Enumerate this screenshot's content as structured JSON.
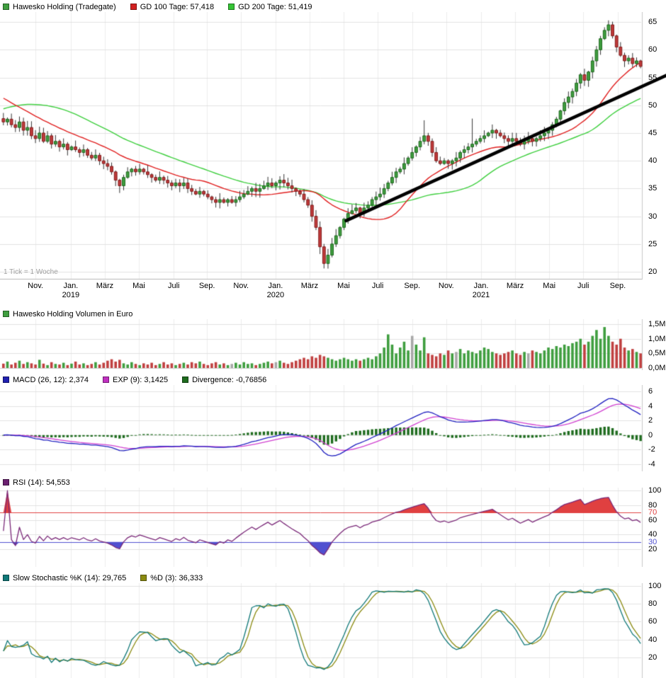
{
  "panels": {
    "price": {
      "legend": [
        {
          "label": "Hawesko Holding (Tradegate)",
          "color": "#3f9e3f"
        },
        {
          "label": "GD 100 Tage: 57,418",
          "color": "#d22020"
        },
        {
          "label": "GD 200 Tage: 51,419",
          "color": "#35c435"
        }
      ],
      "tick_note": "1 Tick = 1 Woche",
      "y_ticks": [
        {
          "v": 65,
          "label": "65"
        },
        {
          "v": 60,
          "label": "60"
        },
        {
          "v": 55,
          "label": "55"
        },
        {
          "v": 50,
          "label": "50"
        },
        {
          "v": 45,
          "label": "45"
        },
        {
          "v": 40,
          "label": "40"
        },
        {
          "v": 35,
          "label": "35"
        },
        {
          "v": 30,
          "label": "30"
        },
        {
          "v": 25,
          "label": "25"
        },
        {
          "v": 20,
          "label": "20"
        }
      ],
      "x_ticks": [
        {
          "label": "Nov.",
          "week": 8.5
        },
        {
          "label": "Jan.",
          "week": 17.3,
          "year": "2019"
        },
        {
          "label": "März",
          "week": 25.8
        },
        {
          "label": "Mai",
          "week": 34.3
        },
        {
          "label": "Juli",
          "week": 43.0
        },
        {
          "label": "Sep.",
          "week": 51.3
        },
        {
          "label": "Nov.",
          "week": 59.8
        },
        {
          "label": "Jan.",
          "week": 68.4,
          "year": "2020"
        },
        {
          "label": "März",
          "week": 76.9
        },
        {
          "label": "Mai",
          "week": 85.4
        },
        {
          "label": "Juli",
          "week": 93.9
        },
        {
          "label": "Sep.",
          "week": 102.5
        },
        {
          "label": "Nov.",
          "week": 111.0
        },
        {
          "label": "Jan.",
          "week": 119.7,
          "year": "2021"
        },
        {
          "label": "März",
          "week": 128.2
        },
        {
          "label": "Mai",
          "week": 136.7
        },
        {
          "label": "Juli",
          "week": 145.2
        },
        {
          "label": "Sep.",
          "week": 153.8
        }
      ]
    },
    "volume": {
      "legend": [
        {
          "label": "Hawesko Holding Volumen in Euro",
          "color": "#3f9e3f"
        }
      ],
      "y_ticks": [
        {
          "v": 1.5,
          "label": "1,5M"
        },
        {
          "v": 1.0,
          "label": "1,0M"
        },
        {
          "v": 0.5,
          "label": "0,5M"
        },
        {
          "v": 0.0,
          "label": "0,0M"
        }
      ]
    },
    "macd": {
      "legend": [
        {
          "label": "MACD (26, 12): 2,374",
          "color": "#2020b0"
        },
        {
          "label": "EXP (9): 3,1425",
          "color": "#c030c0"
        },
        {
          "label": "Divergence: -0,76856",
          "color": "#1e6b1e"
        }
      ],
      "y_ticks": [
        {
          "v": 6,
          "label": "6"
        },
        {
          "v": 4,
          "label": "4"
        },
        {
          "v": 2,
          "label": "2"
        },
        {
          "v": 0,
          "label": "0"
        },
        {
          "v": -2,
          "label": "-2"
        },
        {
          "v": -4,
          "label": "-4"
        }
      ]
    },
    "rsi": {
      "legend": [
        {
          "label": "RSI (14): 54,553",
          "color": "#6b2070"
        }
      ],
      "y_ticks": [
        {
          "v": 100,
          "label": "100"
        },
        {
          "v": 80,
          "label": "80"
        },
        {
          "v": 70,
          "label": "70",
          "color": "#e04040"
        },
        {
          "v": 60,
          "label": "60"
        },
        {
          "v": 40,
          "label": "40"
        },
        {
          "v": 30,
          "label": "30",
          "color": "#5050d0"
        },
        {
          "v": 20,
          "label": "20"
        }
      ]
    },
    "stoch": {
      "legend": [
        {
          "label": "Slow Stochastic %K (14): 29,765",
          "color": "#107878"
        },
        {
          "label": "%D (3): 36,333",
          "color": "#8a8a10"
        }
      ],
      "y_ticks": [
        {
          "v": 100,
          "label": "100"
        },
        {
          "v": 80,
          "label": "80"
        },
        {
          "v": 60,
          "label": "60"
        },
        {
          "v": 40,
          "label": "40"
        },
        {
          "v": 20,
          "label": "20"
        }
      ]
    }
  },
  "colors": {
    "candle_up": "#3f9e3f",
    "candle_up_border": "#1c661c",
    "candle_down": "#c03a3a",
    "candle_down_border": "#801c1c",
    "wick": "#333333",
    "gd100": "#e02020",
    "gd200": "#3fcf3f",
    "trend": "#000000",
    "volume_up": "#3f9e3f",
    "volume_down": "#c04040",
    "volume_neutral": "#a8a8a8",
    "macd_line": "#2020c0",
    "macd_signal": "#d040d0",
    "macd_hist": "#1e6b1e",
    "rsi_line": "#7a2878",
    "rsi_overbought": "#e04040",
    "rsi_oversold": "#5050d0",
    "stoch_k": "#107878",
    "stoch_d": "#8a8a10"
  },
  "chart_data": [
    {
      "type": "candlestick",
      "title": "Hawesko Holding (Tradegate)",
      "tick_unit": "1 Tick = 1 Woche",
      "ylim": [
        20,
        65
      ],
      "gd100": {
        "label": "GD 100 Tage",
        "period_days": 100,
        "last": 57.418
      },
      "gd200": {
        "label": "GD 200 Tage",
        "period_days": 200,
        "last": 51.419
      },
      "trendline": {
        "from_week": 86,
        "from_price": 29.2,
        "to_week": 166,
        "to_price": 55.4
      },
      "wick_overrides": {
        "29": {
          "low": 34.2
        },
        "79": {
          "low": 23.2
        },
        "80": {
          "low": 20.6
        },
        "105": {
          "high": 47.3
        },
        "117": {
          "high": 47.6
        },
        "151": {
          "high": 65.3
        }
      },
      "closes": [
        47.0,
        47.5,
        46.5,
        46.0,
        47.0,
        45.5,
        46.0,
        44.5,
        44.0,
        45.0,
        43.5,
        44.5,
        43.0,
        43.5,
        42.5,
        43.0,
        42.0,
        42.5,
        42.0,
        41.5,
        42.0,
        41.0,
        40.5,
        41.0,
        40.0,
        39.5,
        39.0,
        38.0,
        36.5,
        35.5,
        37.0,
        38.0,
        38.5,
        38.0,
        38.5,
        38.0,
        37.5,
        37.0,
        36.5,
        37.0,
        36.5,
        36.0,
        35.5,
        36.0,
        35.5,
        36.0,
        35.0,
        34.5,
        34.0,
        34.5,
        34.0,
        33.5,
        33.0,
        32.5,
        33.0,
        32.5,
        33.0,
        32.5,
        33.0,
        33.5,
        34.0,
        34.5,
        35.0,
        34.5,
        35.0,
        35.5,
        36.0,
        35.5,
        36.0,
        36.5,
        36.0,
        35.5,
        35.0,
        34.5,
        34.0,
        33.0,
        32.0,
        30.0,
        28.0,
        24.5,
        21.5,
        23.0,
        25.0,
        26.5,
        28.0,
        29.5,
        30.5,
        31.0,
        31.5,
        30.5,
        31.5,
        32.0,
        33.0,
        33.5,
        34.0,
        35.0,
        36.0,
        37.0,
        38.0,
        38.5,
        39.5,
        40.5,
        41.5,
        42.5,
        43.5,
        44.5,
        43.5,
        41.5,
        40.0,
        39.5,
        40.0,
        39.5,
        40.0,
        40.5,
        41.5,
        42.0,
        42.5,
        43.0,
        43.5,
        44.0,
        44.5,
        45.0,
        45.5,
        45.0,
        44.5,
        44.0,
        43.5,
        44.0,
        43.5,
        43.0,
        43.5,
        44.0,
        43.5,
        44.0,
        44.5,
        45.0,
        45.5,
        46.5,
        47.5,
        49.0,
        50.5,
        51.5,
        52.5,
        54.0,
        55.5,
        54.5,
        56.0,
        58.0,
        60.0,
        62.0,
        63.5,
        64.5,
        62.5,
        60.5,
        59.0,
        58.0,
        58.5,
        57.5,
        58.0,
        57.0
      ]
    },
    {
      "type": "bar",
      "title": "Hawesko Holding Volumen in Euro",
      "ylim": [
        0,
        1.5
      ],
      "unit": "M",
      "neutral_weeks": [
        57,
        68,
        102,
        113,
        131
      ],
      "values": [
        0.15,
        0.22,
        0.12,
        0.18,
        0.25,
        0.14,
        0.2,
        0.16,
        0.12,
        0.28,
        0.15,
        0.1,
        0.2,
        0.14,
        0.12,
        0.18,
        0.1,
        0.15,
        0.22,
        0.12,
        0.16,
        0.1,
        0.14,
        0.2,
        0.12,
        0.18,
        0.25,
        0.3,
        0.22,
        0.28,
        0.16,
        0.12,
        0.2,
        0.14,
        0.1,
        0.16,
        0.12,
        0.18,
        0.1,
        0.14,
        0.2,
        0.12,
        0.16,
        0.1,
        0.14,
        0.18,
        0.12,
        0.2,
        0.16,
        0.22,
        0.14,
        0.1,
        0.16,
        0.2,
        0.12,
        0.16,
        0.1,
        0.14,
        0.18,
        0.12,
        0.2,
        0.14,
        0.16,
        0.1,
        0.14,
        0.18,
        0.22,
        0.16,
        0.2,
        0.25,
        0.18,
        0.14,
        0.2,
        0.25,
        0.3,
        0.35,
        0.3,
        0.4,
        0.35,
        0.45,
        0.4,
        0.35,
        0.3,
        0.25,
        0.3,
        0.35,
        0.3,
        0.25,
        0.3,
        0.25,
        0.3,
        0.35,
        0.3,
        0.4,
        0.5,
        0.7,
        1.15,
        0.8,
        0.5,
        0.7,
        0.9,
        0.6,
        1.1,
        0.8,
        0.6,
        1.05,
        0.5,
        0.45,
        0.4,
        0.5,
        0.45,
        0.6,
        0.5,
        0.55,
        0.65,
        0.5,
        0.6,
        0.55,
        0.5,
        0.6,
        0.7,
        0.65,
        0.55,
        0.5,
        0.45,
        0.5,
        0.55,
        0.6,
        0.5,
        0.45,
        0.55,
        0.5,
        0.6,
        0.55,
        0.5,
        0.6,
        0.7,
        0.65,
        0.75,
        0.7,
        0.8,
        0.75,
        0.85,
        0.9,
        1.0,
        0.8,
        0.9,
        1.1,
        1.3,
        1.0,
        1.4,
        1.1,
        0.9,
        0.8,
        1.0,
        0.7,
        0.6,
        0.65,
        0.55,
        0.5
      ]
    },
    {
      "type": "line",
      "title": "MACD",
      "ylim": [
        -4,
        6
      ],
      "macd_params": [
        26,
        12
      ],
      "signal_param": 9,
      "macd_last": 2.374,
      "signal_last": 3.1425,
      "divergence_last": -0.76856
    },
    {
      "type": "line",
      "title": "RSI",
      "period": 14,
      "last": 54.553,
      "ylim": [
        0,
        100
      ],
      "overbought": 70,
      "oversold": 30
    },
    {
      "type": "line",
      "title": "Slow Stochastic",
      "k_period": 14,
      "d_period": 3,
      "k_last": 29.765,
      "d_last": 36.333,
      "ylim": [
        0,
        100
      ]
    }
  ]
}
